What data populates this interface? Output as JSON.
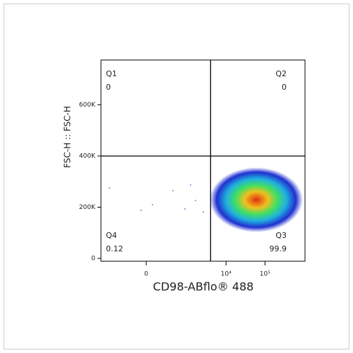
{
  "chart_data": {
    "type": "quadrant",
    "xlabel": "CD98-ABflo® 488",
    "ylabel": "FSC-H :: FSC-H",
    "xscale": "biexponential",
    "xlim": [
      -1285,
      1070000
    ],
    "ylim": [
      -11000,
      775000
    ],
    "xticks": [
      0,
      {
        "value": 10000,
        "label": "10⁴"
      },
      {
        "value": 100000,
        "label": "10⁵"
      }
    ],
    "yticks": [
      0,
      {
        "value": 200000,
        "label": "200K"
      },
      {
        "value": 400000,
        "label": "400K"
      },
      {
        "value": 600000,
        "label": "600K"
      }
    ],
    "gate": {
      "x": 4000,
      "y": 400000
    },
    "quadrants": [
      {
        "name": "Q1",
        "value": 0
      },
      {
        "name": "Q2",
        "value": 0
      },
      {
        "name": "Q3",
        "value": 99.9
      },
      {
        "name": "Q4",
        "value": 0.12
      }
    ]
  }
}
